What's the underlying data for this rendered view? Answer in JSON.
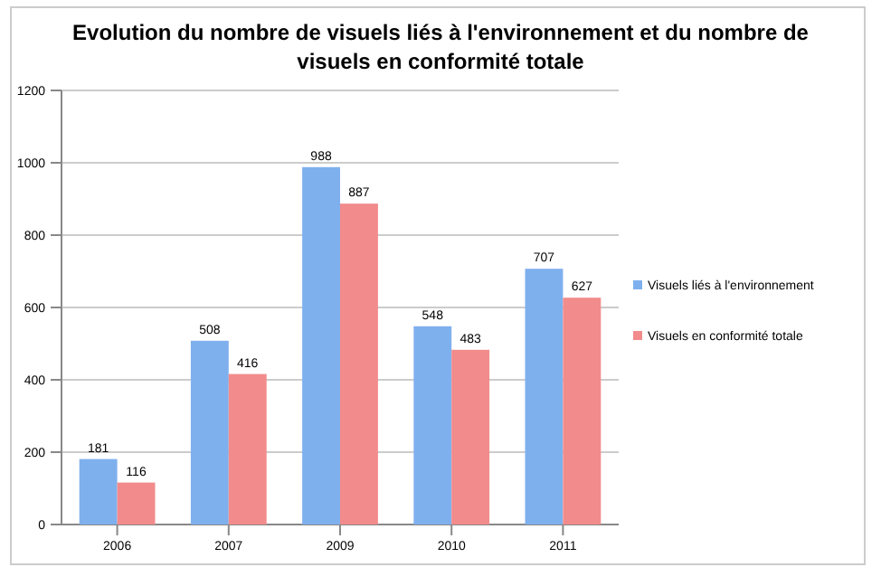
{
  "chart_data": {
    "type": "bar",
    "title": "Evolution du nombre de visuels liés à l'environnement et du nombre de visuels en conformité totale",
    "categories": [
      "2006",
      "2007",
      "2009",
      "2010",
      "2011"
    ],
    "series": [
      {
        "name": "Visuels liés à l'environnement",
        "color": "#7fb0ee",
        "values": [
          181,
          508,
          988,
          548,
          707
        ]
      },
      {
        "name": "Visuels en conformité totale",
        "color": "#f28b8b",
        "values": [
          116,
          416,
          887,
          483,
          627
        ]
      }
    ],
    "ylim": [
      0,
      1200
    ],
    "yticks": [
      0,
      200,
      400,
      600,
      800,
      1000,
      1200
    ],
    "grid": "y",
    "legend": "right",
    "data_labels": true
  }
}
